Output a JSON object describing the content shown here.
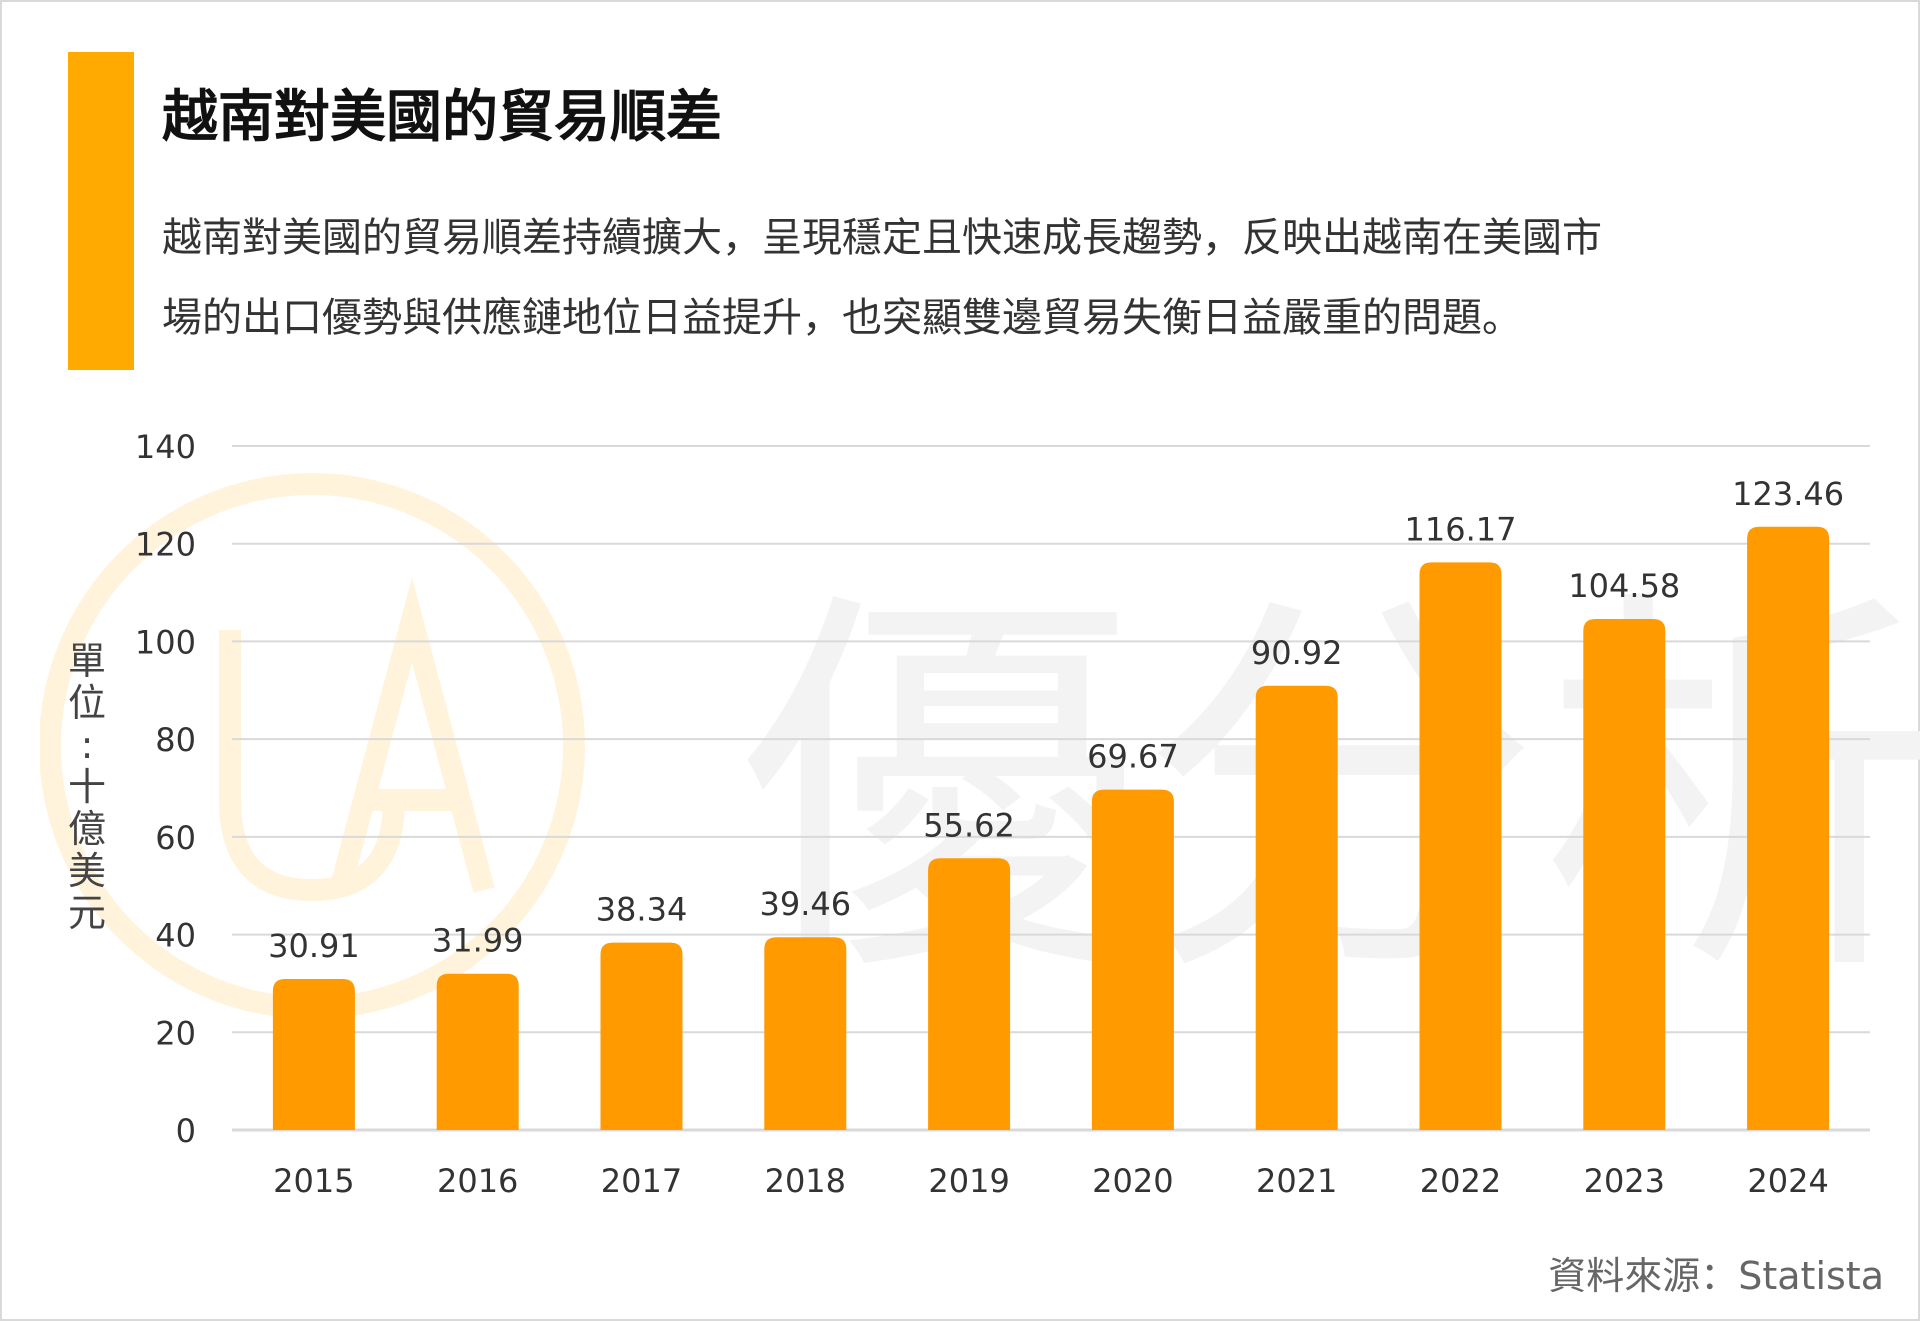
{
  "header": {
    "title": "越南對美國的貿易順差",
    "description_lines": [
      "越南對美國的貿易順差持續擴大，呈現穩定且快速成長趨勢，反映出越南在美國市",
      "場的出口優勢與供應鏈地位日益提升，也突顯雙邊貿易失衡日益嚴重的問題。"
    ]
  },
  "watermark": {
    "glyphs": "優分析",
    "logo_icon": "ua-circle-logo-icon"
  },
  "footer": {
    "source": "資料來源：Statista"
  },
  "colors": {
    "accent": "#FFAA00",
    "bar": "#FF9A00",
    "grid": "#d9d9d9",
    "watermark": "#f4f4f4"
  },
  "chart_data": {
    "type": "bar",
    "categories": [
      "2015",
      "2016",
      "2017",
      "2018",
      "2019",
      "2020",
      "2021",
      "2022",
      "2023",
      "2024"
    ],
    "values": [
      30.91,
      31.99,
      38.34,
      39.46,
      55.62,
      69.67,
      90.92,
      116.17,
      104.58,
      123.46
    ],
    "value_labels": [
      "30.91",
      "31.99",
      "38.34",
      "39.46",
      "55.62",
      "69.67",
      "90.92",
      "116.17",
      "104.58",
      "123.46"
    ],
    "ylabel": "單位：十億美元",
    "yticks": [
      0,
      20,
      40,
      60,
      80,
      100,
      120,
      140
    ],
    "ylim": [
      0,
      140
    ],
    "grid": true,
    "legend": "none"
  }
}
